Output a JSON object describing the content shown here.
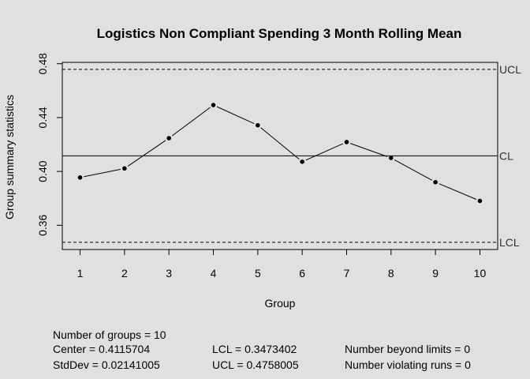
{
  "chart_data": {
    "type": "line",
    "title": "Logistics Non Compliant Spending 3 Month Rolling Mean",
    "xlabel": "Group",
    "ylabel": "Group summary statistics",
    "x": [
      1,
      2,
      3,
      4,
      5,
      6,
      7,
      8,
      9,
      10
    ],
    "x_ticks": [
      "1",
      "2",
      "3",
      "4",
      "5",
      "6",
      "7",
      "8",
      "9",
      "10"
    ],
    "y_ticks": [
      "0.36",
      "0.40",
      "0.44",
      "0.48"
    ],
    "y_tick_values": [
      0.36,
      0.4,
      0.44,
      0.48
    ],
    "values": [
      0.3955,
      0.4022,
      0.4247,
      0.4493,
      0.4343,
      0.4072,
      0.4218,
      0.41,
      0.392,
      0.3781
    ],
    "xlim": [
      0.6,
      10.4
    ],
    "ylim": [
      0.342,
      0.481
    ],
    "center_line": 0.4115704,
    "lcl": 0.3473402,
    "ucl": 0.4758005,
    "limit_labels": {
      "ucl": "UCL",
      "cl": "CL",
      "lcl": "LCL"
    },
    "grid": false
  },
  "stats": {
    "groups": "Number of groups = 10",
    "center": "Center = 0.4115704",
    "stddev": "StdDev = 0.02141005",
    "lcl": "LCL = 0.3473402",
    "ucl": "UCL = 0.4758005",
    "beyond": "Number beyond limits = 0",
    "violating": "Number violating runs = 0"
  }
}
